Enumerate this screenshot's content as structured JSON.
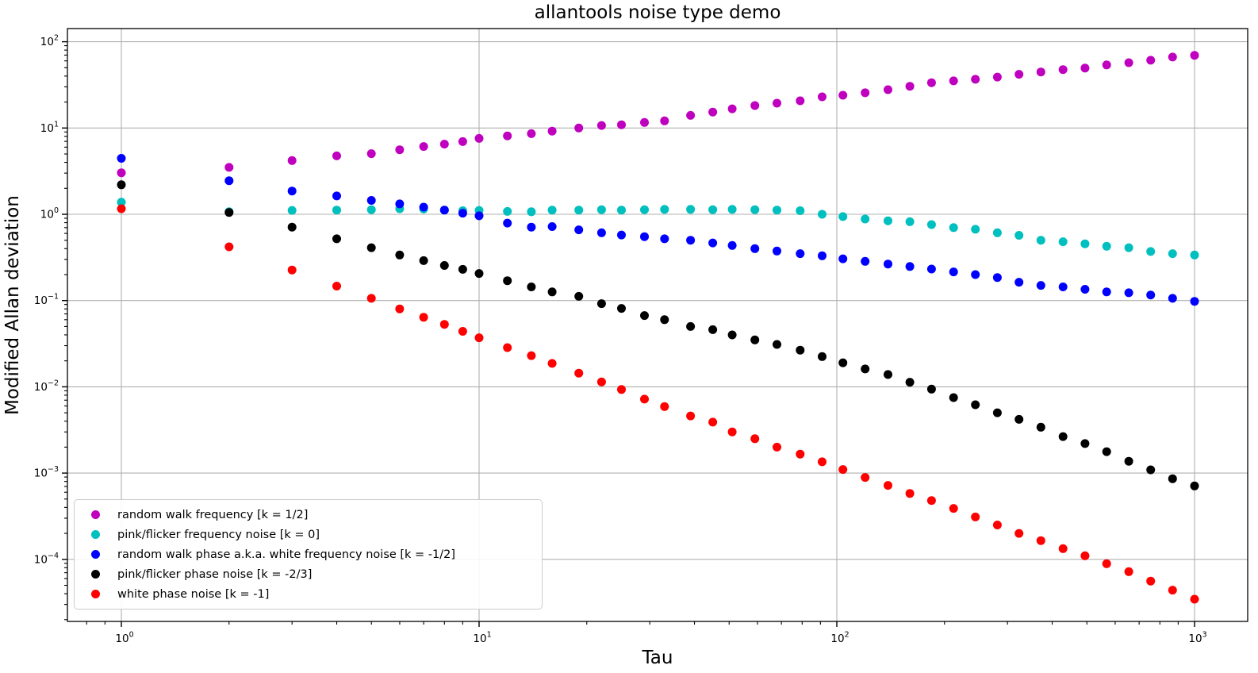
{
  "chart_data": {
    "type": "scatter",
    "title": "allantools noise type demo",
    "xlabel": "Tau",
    "ylabel": "Modified Allan deviation",
    "xscale": "log",
    "yscale": "log",
    "xlim": [
      0.707,
      1407
    ],
    "ylim": [
      1.9e-05,
      142
    ],
    "grid": true,
    "grid_color": "#b0b0b0",
    "background_color": "#ffffff",
    "legend_position": "lower left",
    "x_tick_exponents": [
      0,
      1,
      2,
      3
    ],
    "y_tick_exponents": [
      2,
      1,
      0,
      -1,
      -2,
      -3,
      -4
    ],
    "taus": [
      1,
      2,
      3,
      4,
      5,
      6,
      7,
      8,
      9,
      10,
      12,
      14,
      16,
      19,
      22,
      25,
      29,
      33,
      39,
      45,
      51,
      59,
      68,
      79,
      91,
      104,
      120,
      139,
      160,
      184,
      212,
      244,
      281,
      323,
      372,
      429,
      494,
      568,
      655,
      754,
      868,
      1000
    ],
    "series": [
      {
        "name": "random-walk-frequency",
        "label": "random walk frequency [k = 1/2]",
        "color": "#bf00bf",
        "marker": "circle",
        "values": [
          3.03,
          3.5,
          4.2,
          4.75,
          5.05,
          5.6,
          6.1,
          6.5,
          6.96,
          7.57,
          8.1,
          8.6,
          9.2,
          10.0,
          10.7,
          10.9,
          11.6,
          12.1,
          14.0,
          15.3,
          16.7,
          18.2,
          19.4,
          20.7,
          23.0,
          24.0,
          25.6,
          27.8,
          30.5,
          33.5,
          35.2,
          36.7,
          39.0,
          42.0,
          44.6,
          47.5,
          49.5,
          53.9,
          57.2,
          61.0,
          66.5,
          69.6
        ]
      },
      {
        "name": "pink-flicker-frequency-noise",
        "label": "pink/flicker frequency noise [k = 0]",
        "color": "#00bfbf",
        "marker": "circle",
        "values": [
          1.38,
          1.07,
          1.11,
          1.12,
          1.13,
          1.16,
          1.15,
          1.12,
          1.1,
          1.11,
          1.08,
          1.07,
          1.12,
          1.12,
          1.13,
          1.12,
          1.13,
          1.14,
          1.14,
          1.13,
          1.14,
          1.13,
          1.12,
          1.1,
          1.0,
          0.94,
          0.88,
          0.84,
          0.82,
          0.76,
          0.7,
          0.67,
          0.61,
          0.57,
          0.5,
          0.48,
          0.455,
          0.426,
          0.41,
          0.37,
          0.35,
          0.337
        ]
      },
      {
        "name": "random-walk-phase-white-frequency-noise",
        "label": "random walk phase a.k.a. white frequency noise [k = -1/2]",
        "color": "#0000ff",
        "marker": "circle",
        "values": [
          4.45,
          2.45,
          1.86,
          1.63,
          1.45,
          1.32,
          1.21,
          1.12,
          1.03,
          0.96,
          0.79,
          0.71,
          0.72,
          0.66,
          0.61,
          0.575,
          0.55,
          0.52,
          0.5,
          0.465,
          0.435,
          0.4,
          0.375,
          0.35,
          0.33,
          0.305,
          0.285,
          0.265,
          0.248,
          0.232,
          0.215,
          0.2,
          0.185,
          0.163,
          0.15,
          0.144,
          0.135,
          0.126,
          0.123,
          0.116,
          0.106,
          0.098
        ]
      },
      {
        "name": "pink-flicker-phase-noise",
        "label": "pink/flicker phase noise [k = -2/3]",
        "color": "#000000",
        "marker": "circle",
        "values": [
          2.2,
          1.05,
          0.71,
          0.52,
          0.41,
          0.337,
          0.29,
          0.255,
          0.23,
          0.206,
          0.17,
          0.144,
          0.126,
          0.112,
          0.092,
          0.081,
          0.067,
          0.06,
          0.05,
          0.046,
          0.04,
          0.035,
          0.031,
          0.0266,
          0.0224,
          0.019,
          0.0161,
          0.0139,
          0.0113,
          0.0094,
          0.0075,
          0.0062,
          0.005,
          0.0042,
          0.0034,
          0.00265,
          0.0022,
          0.00177,
          0.00137,
          0.00109,
          0.00086,
          0.00071
        ]
      },
      {
        "name": "white-phase-noise",
        "label": "white phase noise [k = -1]",
        "color": "#ff0000",
        "marker": "circle",
        "values": [
          1.16,
          0.42,
          0.226,
          0.147,
          0.106,
          0.08,
          0.064,
          0.053,
          0.044,
          0.037,
          0.0285,
          0.023,
          0.0187,
          0.0144,
          0.0114,
          0.0093,
          0.0072,
          0.0059,
          0.0046,
          0.0039,
          0.003,
          0.0025,
          0.002,
          0.00166,
          0.00135,
          0.0011,
          0.00089,
          0.00072,
          0.00058,
          0.00048,
          0.00039,
          0.00031,
          0.00025,
          0.0002,
          0.000165,
          0.000133,
          0.00011,
          8.9e-05,
          7.2e-05,
          5.6e-05,
          4.4e-05,
          3.45e-05
        ]
      }
    ]
  }
}
